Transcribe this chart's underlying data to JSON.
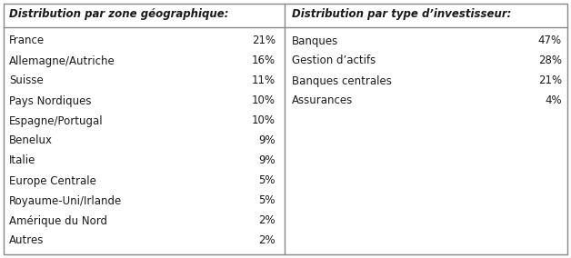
{
  "left_title": "Distribution par zone géographique:",
  "right_title": "Distribution par type d’investisseur:",
  "left_items": [
    [
      "France",
      "21%"
    ],
    [
      "Allemagne/Autriche",
      "16%"
    ],
    [
      "Suisse",
      "11%"
    ],
    [
      "Pays Nordiques",
      "10%"
    ],
    [
      "Espagne/Portugal",
      "10%"
    ],
    [
      "Benelux",
      "9%"
    ],
    [
      "Italie",
      "9%"
    ],
    [
      "Europe Centrale",
      "5%"
    ],
    [
      "Royaume-Uni/Irlande",
      "5%"
    ],
    [
      "Amérique du Nord",
      "2%"
    ],
    [
      "Autres",
      "2%"
    ]
  ],
  "right_items": [
    [
      "Banques",
      "47%"
    ],
    [
      "Gestion d’actifs",
      "28%"
    ],
    [
      "Banques centrales",
      "21%"
    ],
    [
      "Assurances",
      "4%"
    ]
  ],
  "bg_color": "#ffffff",
  "border_color": "#888888",
  "title_fontsize": 8.5,
  "item_fontsize": 8.5,
  "text_color": "#1a1a1a"
}
